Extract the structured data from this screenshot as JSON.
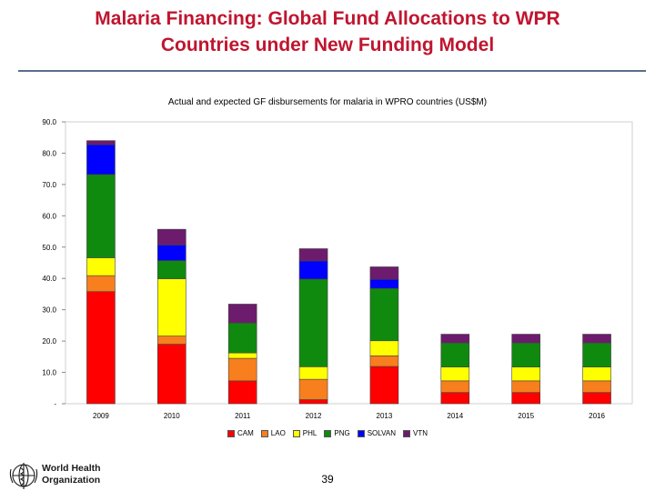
{
  "slide": {
    "title_line1": "Malaria Financing: Global Fund Allocations to WPR",
    "title_line2": "Countries under New Funding Model",
    "page_number": "39"
  },
  "logo": {
    "line1": "World Health",
    "line2": "Organization"
  },
  "chart_data": {
    "type": "bar",
    "stacked": true,
    "title": "Actual and expected GF disbursements for malaria in WPRO countries (US$M)",
    "xlabel": "",
    "ylabel": "",
    "ylim": [
      0,
      90
    ],
    "yticks": [
      0,
      10,
      20,
      30,
      40,
      50,
      60,
      70,
      80,
      90
    ],
    "ytick_labels": [
      "-",
      "10.0",
      "20.0",
      "30.0",
      "40.0",
      "50.0",
      "60.0",
      "70.0",
      "80.0",
      "90.0"
    ],
    "categories": [
      "2009",
      "2010",
      "2011",
      "2012",
      "2013",
      "2014",
      "2015",
      "2016"
    ],
    "legend_position": "bottom",
    "series": [
      {
        "name": "CAM",
        "color": "#ff0000",
        "values": [
          35.8,
          19.0,
          7.3,
          1.3,
          11.9,
          3.6,
          3.6,
          3.6
        ]
      },
      {
        "name": "LAO",
        "color": "#f77f1e",
        "values": [
          5.1,
          2.6,
          7.2,
          6.5,
          3.4,
          3.7,
          3.7,
          3.7
        ]
      },
      {
        "name": "PHL",
        "color": "#ffff00",
        "values": [
          5.7,
          18.3,
          1.7,
          4.0,
          4.8,
          4.4,
          4.4,
          4.4
        ]
      },
      {
        "name": "PNG",
        "color": "#0f8a0f",
        "values": [
          26.6,
          5.8,
          9.6,
          28.0,
          16.7,
          7.7,
          7.7,
          7.7
        ]
      },
      {
        "name": "SOLVAN",
        "color": "#0000ff",
        "values": [
          9.5,
          5.0,
          0.0,
          5.8,
          2.9,
          0.0,
          0.0,
          0.0
        ]
      },
      {
        "name": "VTN",
        "color": "#6d1b6d",
        "values": [
          1.3,
          5.0,
          6.0,
          3.9,
          4.0,
          2.8,
          2.8,
          2.8
        ]
      }
    ]
  }
}
